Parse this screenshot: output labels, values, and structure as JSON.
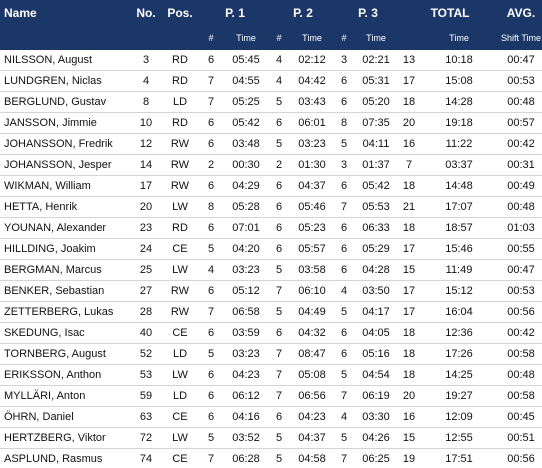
{
  "table": {
    "header": {
      "row1": [
        "Name",
        "No.",
        "Pos.",
        "P. 1",
        "P. 2",
        "P. 3",
        "TOTAL",
        "AVG."
      ],
      "row2": [
        "#",
        "Time",
        "#",
        "Time",
        "#",
        "Time",
        "Time",
        "Shift Time"
      ]
    },
    "rows": [
      [
        "NILSSON, August",
        "3",
        "RD",
        "6",
        "05:45",
        "4",
        "02:12",
        "3",
        "02:21",
        "13",
        "10:18",
        "00:47"
      ],
      [
        "LUNDGREN, Niclas",
        "4",
        "RD",
        "7",
        "04:55",
        "4",
        "04:42",
        "6",
        "05:31",
        "17",
        "15:08",
        "00:53"
      ],
      [
        "BERGLUND, Gustav",
        "8",
        "LD",
        "7",
        "05:25",
        "5",
        "03:43",
        "6",
        "05:20",
        "18",
        "14:28",
        "00:48"
      ],
      [
        "JANSSON, Jimmie",
        "10",
        "RD",
        "6",
        "05:42",
        "6",
        "06:01",
        "8",
        "07:35",
        "20",
        "19:18",
        "00:57"
      ],
      [
        "JOHANSSON, Fredrik",
        "12",
        "RW",
        "6",
        "03:48",
        "5",
        "03:23",
        "5",
        "04:11",
        "16",
        "11:22",
        "00:42"
      ],
      [
        "JOHANSSON, Jesper",
        "14",
        "RW",
        "2",
        "00:30",
        "2",
        "01:30",
        "3",
        "01:37",
        "7",
        "03:37",
        "00:31"
      ],
      [
        "WIKMAN, William",
        "17",
        "RW",
        "6",
        "04:29",
        "6",
        "04:37",
        "6",
        "05:42",
        "18",
        "14:48",
        "00:49"
      ],
      [
        "HETTA, Henrik",
        "20",
        "LW",
        "8",
        "05:28",
        "6",
        "05:46",
        "7",
        "05:53",
        "21",
        "17:07",
        "00:48"
      ],
      [
        "YOUNAN, Alexander",
        "23",
        "RD",
        "6",
        "07:01",
        "6",
        "05:23",
        "6",
        "06:33",
        "18",
        "18:57",
        "01:03"
      ],
      [
        "HILLDING, Joakim",
        "24",
        "CE",
        "5",
        "04:20",
        "6",
        "05:57",
        "6",
        "05:29",
        "17",
        "15:46",
        "00:55"
      ],
      [
        "BERGMAN, Marcus",
        "25",
        "LW",
        "4",
        "03:23",
        "5",
        "03:58",
        "6",
        "04:28",
        "15",
        "11:49",
        "00:47"
      ],
      [
        "BENKER, Sebastian",
        "27",
        "RW",
        "6",
        "05:12",
        "7",
        "06:10",
        "4",
        "03:50",
        "17",
        "15:12",
        "00:53"
      ],
      [
        "ZETTERBERG, Lukas",
        "28",
        "RW",
        "7",
        "06:58",
        "5",
        "04:49",
        "5",
        "04:17",
        "17",
        "16:04",
        "00:56"
      ],
      [
        "SKEDUNG, Isac",
        "40",
        "CE",
        "6",
        "03:59",
        "6",
        "04:32",
        "6",
        "04:05",
        "18",
        "12:36",
        "00:42"
      ],
      [
        "TORNBERG, August",
        "52",
        "LD",
        "5",
        "03:23",
        "7",
        "08:47",
        "6",
        "05:16",
        "18",
        "17:26",
        "00:58"
      ],
      [
        "ERIKSSON, Anthon",
        "53",
        "LW",
        "6",
        "04:23",
        "7",
        "05:08",
        "5",
        "04:54",
        "18",
        "14:25",
        "00:48"
      ],
      [
        "MYLLÄRI, Anton",
        "59",
        "LD",
        "6",
        "06:12",
        "7",
        "06:56",
        "7",
        "06:19",
        "20",
        "19:27",
        "00:58"
      ],
      [
        "ÖHRN, Daniel",
        "63",
        "CE",
        "6",
        "04:16",
        "6",
        "04:23",
        "4",
        "03:30",
        "16",
        "12:09",
        "00:45"
      ],
      [
        "HERTZBERG, Viktor",
        "72",
        "LW",
        "5",
        "03:52",
        "5",
        "04:37",
        "5",
        "04:26",
        "15",
        "12:55",
        "00:51"
      ],
      [
        "ASPLUND, Rasmus",
        "74",
        "CE",
        "7",
        "06:28",
        "5",
        "04:58",
        "7",
        "06:25",
        "19",
        "17:51",
        "00:56"
      ]
    ]
  }
}
